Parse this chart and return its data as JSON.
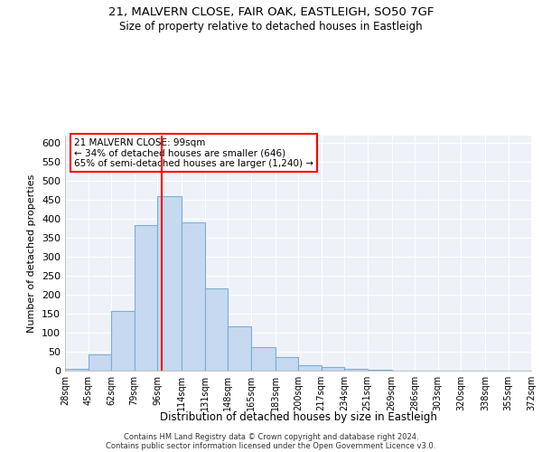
{
  "title_line1": "21, MALVERN CLOSE, FAIR OAK, EASTLEIGH, SO50 7GF",
  "title_line2": "Size of property relative to detached houses in Eastleigh",
  "xlabel": "Distribution of detached houses by size in Eastleigh",
  "ylabel": "Number of detached properties",
  "annotation_line1": "21 MALVERN CLOSE: 99sqm",
  "annotation_line2": "← 34% of detached houses are smaller (646)",
  "annotation_line3": "65% of semi-detached houses are larger (1,240) →",
  "footer_line1": "Contains HM Land Registry data © Crown copyright and database right 2024.",
  "footer_line2": "Contains public sector information licensed under the Open Government Licence v3.0.",
  "bin_edges": [
    28,
    45,
    62,
    79,
    96,
    114,
    131,
    148,
    165,
    183,
    200,
    217,
    234,
    251,
    269,
    286,
    303,
    320,
    338,
    355,
    372
  ],
  "bar_heights": [
    4,
    43,
    158,
    385,
    460,
    390,
    217,
    118,
    63,
    35,
    15,
    9,
    4,
    3,
    1,
    0,
    0,
    1,
    0,
    0
  ],
  "bar_color": "#c6d9f0",
  "bar_edge_color": "#7bafd4",
  "vline_x": 99,
  "vline_color": "red",
  "bg_color": "#eef2f8",
  "grid_color": "white",
  "annotation_box_color": "red",
  "annotation_fill": "white",
  "ylim": [
    0,
    620
  ],
  "yticks": [
    0,
    50,
    100,
    150,
    200,
    250,
    300,
    350,
    400,
    450,
    500,
    550,
    600
  ]
}
